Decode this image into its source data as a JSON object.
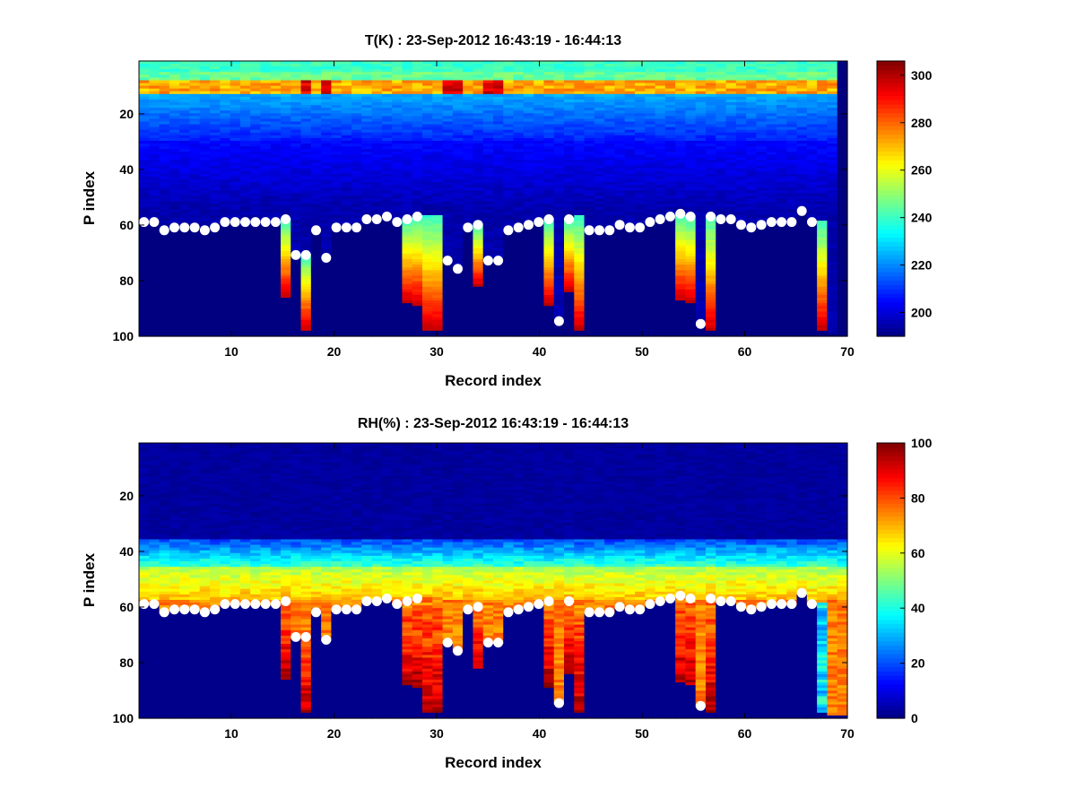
{
  "chart_data": [
    {
      "type": "heatmap",
      "title": "T(K) : 23-Sep-2012 16:43:19 - 16:44:13",
      "xlabel": "Record index",
      "ylabel": "P index",
      "xlim": [
        1,
        70
      ],
      "ylim": [
        1,
        100
      ],
      "y_reversed": true,
      "xticks": [
        "10",
        "20",
        "30",
        "40",
        "50",
        "60",
        "70"
      ],
      "yticks": [
        "20",
        "40",
        "60",
        "80",
        "100"
      ],
      "colorbar": {
        "min": 190,
        "max": 306,
        "ticks": [
          "200",
          "220",
          "240",
          "260",
          "280",
          "300"
        ]
      },
      "levels": {
        "surface": 10,
        "top": 255,
        "midstart": 225,
        "mid": 205,
        "cold": 195,
        "fill": 190
      },
      "surface_index": [
        59,
        59,
        62,
        61,
        61,
        61,
        62,
        61,
        59,
        59,
        59,
        59,
        59,
        59,
        58,
        71,
        71,
        62,
        72,
        61,
        61,
        61,
        58,
        58,
        57,
        59,
        58,
        57,
        57,
        57,
        73,
        76,
        61,
        60,
        73,
        73,
        62,
        61,
        60,
        59,
        58,
        95,
        58,
        57,
        62,
        62,
        62,
        60,
        61,
        61,
        59,
        58,
        57,
        56,
        57,
        96,
        57,
        58,
        58,
        60,
        61,
        60,
        59,
        59,
        59,
        55,
        59,
        59,
        99,
        99
      ],
      "bottom_index": [
        59,
        59,
        62,
        61,
        61,
        61,
        62,
        61,
        59,
        59,
        59,
        59,
        59,
        59,
        86,
        71,
        98,
        62,
        72,
        61,
        61,
        61,
        58,
        58,
        57,
        59,
        88,
        89,
        98,
        98,
        73,
        76,
        61,
        82,
        73,
        73,
        62,
        61,
        60,
        59,
        89,
        95,
        84,
        98,
        62,
        62,
        62,
        60,
        61,
        61,
        59,
        58,
        57,
        87,
        88,
        96,
        98,
        58,
        58,
        60,
        61,
        60,
        59,
        59,
        59,
        55,
        59,
        98,
        99,
        99
      ],
      "markers": [
        [
          1,
          59
        ],
        [
          2,
          59
        ],
        [
          3,
          62
        ],
        [
          4,
          61
        ],
        [
          5,
          61
        ],
        [
          6,
          61
        ],
        [
          7,
          62
        ],
        [
          8,
          61
        ],
        [
          9,
          59
        ],
        [
          10,
          59
        ],
        [
          11,
          59
        ],
        [
          12,
          59
        ],
        [
          13,
          59
        ],
        [
          14,
          59
        ],
        [
          15,
          58
        ],
        [
          16,
          71
        ],
        [
          17,
          71
        ],
        [
          18,
          62
        ],
        [
          19,
          72
        ],
        [
          20,
          61
        ],
        [
          21,
          61
        ],
        [
          22,
          61
        ],
        [
          23,
          58
        ],
        [
          24,
          58
        ],
        [
          25,
          57
        ],
        [
          26,
          59
        ],
        [
          27,
          58
        ],
        [
          28,
          57
        ],
        [
          31,
          73
        ],
        [
          32,
          76
        ],
        [
          33,
          61
        ],
        [
          34,
          60
        ],
        [
          35,
          73
        ],
        [
          36,
          73
        ],
        [
          37,
          62
        ],
        [
          38,
          61
        ],
        [
          39,
          60
        ],
        [
          40,
          59
        ],
        [
          41,
          58
        ],
        [
          42,
          95
        ],
        [
          43,
          58
        ],
        [
          45,
          62
        ],
        [
          46,
          62
        ],
        [
          47,
          62
        ],
        [
          48,
          60
        ],
        [
          49,
          61
        ],
        [
          50,
          61
        ],
        [
          51,
          59
        ],
        [
          52,
          58
        ],
        [
          53,
          57
        ],
        [
          54,
          56
        ],
        [
          55,
          57
        ],
        [
          56,
          96
        ],
        [
          57,
          57
        ],
        [
          58,
          58
        ],
        [
          59,
          58
        ],
        [
          60,
          60
        ],
        [
          61,
          61
        ],
        [
          62,
          60
        ],
        [
          63,
          59
        ],
        [
          64,
          59
        ],
        [
          65,
          59
        ],
        [
          66,
          55
        ],
        [
          67,
          59
        ]
      ]
    },
    {
      "type": "heatmap",
      "title": "RH(%) : 23-Sep-2012 16:43:19 - 16:44:13",
      "xlabel": "Record index",
      "ylabel": "P index",
      "xlim": [
        1,
        70
      ],
      "ylim": [
        1,
        100
      ],
      "y_reversed": true,
      "xticks": [
        "10",
        "20",
        "30",
        "40",
        "50",
        "60",
        "70"
      ],
      "yticks": [
        "20",
        "40",
        "60",
        "80",
        "100"
      ],
      "colorbar": {
        "min": 0,
        "max": 100,
        "ticks": [
          "0",
          "20",
          "40",
          "60",
          "80",
          "100"
        ]
      },
      "levels": {
        "dry": 3,
        "low": 20,
        "mid": 55,
        "high": 75,
        "veryhigh": 92
      },
      "surface_index": [
        59,
        59,
        62,
        61,
        61,
        61,
        62,
        61,
        59,
        59,
        59,
        59,
        59,
        59,
        58,
        71,
        71,
        62,
        72,
        61,
        61,
        61,
        58,
        58,
        57,
        59,
        58,
        57,
        57,
        57,
        73,
        76,
        61,
        60,
        73,
        73,
        62,
        61,
        60,
        59,
        58,
        95,
        58,
        57,
        62,
        62,
        62,
        60,
        61,
        61,
        59,
        58,
        57,
        56,
        57,
        96,
        57,
        58,
        58,
        60,
        61,
        60,
        59,
        59,
        59,
        55,
        59,
        59,
        99,
        99
      ],
      "bottom_index": [
        59,
        59,
        62,
        61,
        61,
        61,
        62,
        61,
        59,
        59,
        59,
        59,
        59,
        59,
        86,
        71,
        98,
        62,
        72,
        61,
        61,
        61,
        58,
        58,
        57,
        59,
        88,
        89,
        98,
        98,
        73,
        76,
        61,
        82,
        73,
        73,
        62,
        61,
        60,
        59,
        89,
        95,
        84,
        98,
        62,
        62,
        62,
        60,
        61,
        61,
        59,
        58,
        57,
        87,
        88,
        96,
        98,
        58,
        58,
        60,
        61,
        60,
        59,
        59,
        59,
        55,
        59,
        98,
        99,
        99
      ],
      "markers": [
        [
          1,
          59
        ],
        [
          2,
          59
        ],
        [
          3,
          62
        ],
        [
          4,
          61
        ],
        [
          5,
          61
        ],
        [
          6,
          61
        ],
        [
          7,
          62
        ],
        [
          8,
          61
        ],
        [
          9,
          59
        ],
        [
          10,
          59
        ],
        [
          11,
          59
        ],
        [
          12,
          59
        ],
        [
          13,
          59
        ],
        [
          14,
          59
        ],
        [
          15,
          58
        ],
        [
          16,
          71
        ],
        [
          17,
          71
        ],
        [
          18,
          62
        ],
        [
          19,
          72
        ],
        [
          20,
          61
        ],
        [
          21,
          61
        ],
        [
          22,
          61
        ],
        [
          23,
          58
        ],
        [
          24,
          58
        ],
        [
          25,
          57
        ],
        [
          26,
          59
        ],
        [
          27,
          58
        ],
        [
          28,
          57
        ],
        [
          31,
          73
        ],
        [
          32,
          76
        ],
        [
          33,
          61
        ],
        [
          34,
          60
        ],
        [
          35,
          73
        ],
        [
          36,
          73
        ],
        [
          37,
          62
        ],
        [
          38,
          61
        ],
        [
          39,
          60
        ],
        [
          40,
          59
        ],
        [
          41,
          58
        ],
        [
          42,
          95
        ],
        [
          43,
          58
        ],
        [
          45,
          62
        ],
        [
          46,
          62
        ],
        [
          47,
          62
        ],
        [
          48,
          60
        ],
        [
          49,
          61
        ],
        [
          50,
          61
        ],
        [
          51,
          59
        ],
        [
          52,
          58
        ],
        [
          53,
          57
        ],
        [
          54,
          56
        ],
        [
          55,
          57
        ],
        [
          56,
          96
        ],
        [
          57,
          57
        ],
        [
          58,
          58
        ],
        [
          59,
          58
        ],
        [
          60,
          60
        ],
        [
          61,
          61
        ],
        [
          62,
          60
        ],
        [
          63,
          59
        ],
        [
          64,
          59
        ],
        [
          65,
          59
        ],
        [
          66,
          55
        ],
        [
          67,
          59
        ]
      ]
    }
  ]
}
